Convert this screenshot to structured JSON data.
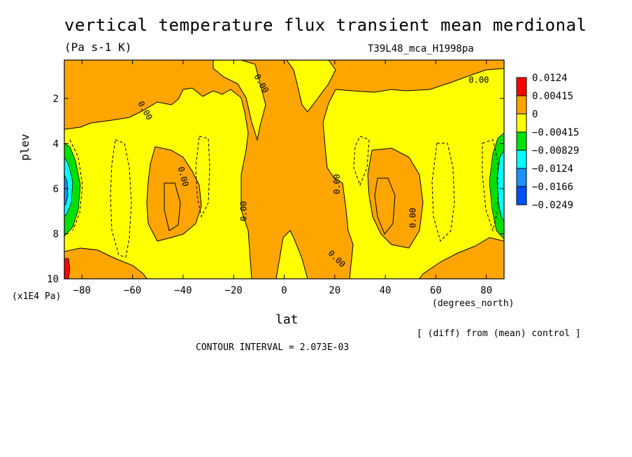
{
  "title": "vertical temperature flux transient mean merdional",
  "units": "(Pa s-1 K)",
  "run_label": "T39L48_mca_H1998pa",
  "footer": {
    "diff_note": "[ (diff) from (mean) control ]",
    "contour_interval": "CONTOUR INTERVAL = 2.073E-03"
  },
  "colors": {
    "c_pos2": "#ff0000",
    "c_pos1": "#ffa500",
    "c_zero": "#ffff00",
    "c_neg1": "#00e000",
    "c_neg2": "#00ffff",
    "c_neg3": "#1e90ff",
    "c_neg4": "#0050ff"
  },
  "chart_data": {
    "type": "contour",
    "title": "vertical temperature flux transient mean merdional",
    "xlabel": "lat",
    "xunits": "(degrees_north)",
    "ylabel": "plev",
    "yunits": "(x1E4 Pa)",
    "xlim": [
      -87,
      87
    ],
    "ylim": [
      10,
      0.3
    ],
    "x_ticks": [
      -80,
      -60,
      -40,
      -20,
      0,
      20,
      40,
      60,
      80
    ],
    "x_tick_labels": [
      "−80",
      "−60",
      "−40",
      "−20",
      "0",
      "20",
      "40",
      "60",
      "80"
    ],
    "y_ticks": [
      2,
      4,
      6,
      8,
      10
    ],
    "y_tick_labels": [
      "2",
      "4",
      "6",
      "8",
      "10"
    ],
    "legend_levels": [
      "0.0124",
      "0.00415",
      "0",
      "−0.00415",
      "−0.00829",
      "−0.0124",
      "−0.0166",
      "−0.0249"
    ],
    "contour_labels": [
      "0.00"
    ],
    "contour_interval": 0.002073
  }
}
